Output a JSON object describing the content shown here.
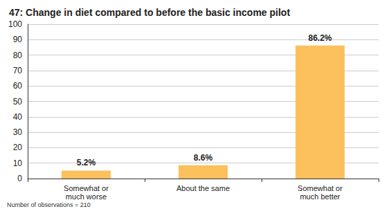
{
  "chart_data": {
    "type": "bar",
    "title": "47: Change in diet compared to before the basic income pilot",
    "categories": [
      "Somewhat or\nmuch worse",
      "About the same",
      "Somewhat or\nmuch better"
    ],
    "values": [
      5.2,
      8.6,
      86.2
    ],
    "value_labels": [
      "5.2%",
      "8.6%",
      "86.2%"
    ],
    "color": "#fcc05c",
    "ylim": [
      0,
      100
    ],
    "yticks": [
      0,
      10,
      20,
      30,
      40,
      50,
      60,
      70,
      80,
      90,
      100
    ],
    "grid": true,
    "data_labels": true,
    "annotations": [
      "Number of observations = 210"
    ]
  }
}
